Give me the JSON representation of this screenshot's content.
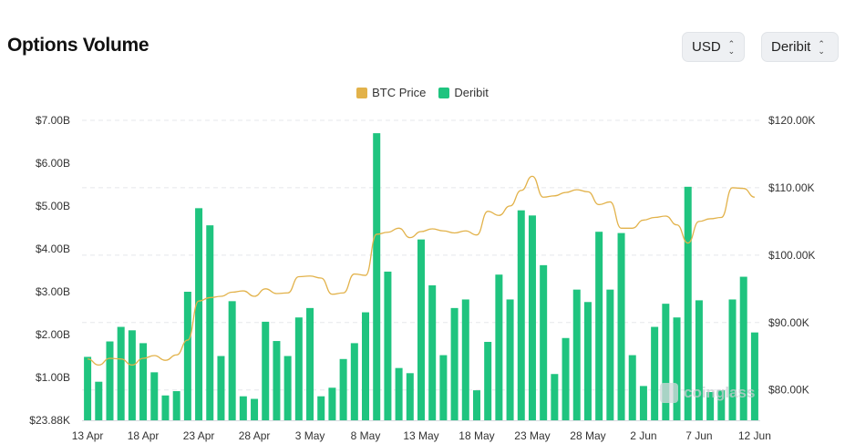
{
  "header": {
    "title": "Options Volume"
  },
  "controls": {
    "currency": {
      "value": "USD"
    },
    "exchange": {
      "value": "Deribit"
    }
  },
  "watermark": {
    "text": "coinglass"
  },
  "colors": {
    "bars": "#1fc47f",
    "price": "#e2b24a",
    "grid": "#e5e7eb"
  },
  "chart_data": {
    "type": "bar",
    "legend": [
      {
        "name": "BTC Price",
        "color": "#e2b24a"
      },
      {
        "name": "Deribit",
        "color": "#1fc47f"
      }
    ],
    "y_left_ticks": [
      "$23.88K",
      "$1.00B",
      "$2.00B",
      "$3.00B",
      "$4.00B",
      "$5.00B",
      "$6.00B",
      "$7.00B"
    ],
    "y_right_ticks": [
      "$80.00K",
      "$90.00K",
      "$100.00K",
      "$110.00K",
      "$120.00K"
    ],
    "x_ticks": [
      "13 Apr",
      "18 Apr",
      "23 Apr",
      "28 Apr",
      "3 May",
      "8 May",
      "13 May",
      "18 May",
      "23 May",
      "28 May",
      "2 Jun",
      "7 Jun",
      "12 Jun"
    ],
    "ylim_left": [
      0,
      7.0
    ],
    "ylim_right": [
      75.5,
      120
    ],
    "y_left_unit": "B USD",
    "y_right_unit": "K USD",
    "series": [
      {
        "name": "Deribit",
        "type": "bar",
        "values": [
          1.48,
          0.9,
          1.84,
          2.18,
          2.1,
          1.8,
          1.12,
          0.58,
          0.68,
          3.0,
          4.95,
          4.55,
          1.5,
          2.78,
          0.56,
          0.5,
          2.3,
          1.85,
          1.5,
          2.4,
          2.62,
          0.56,
          0.76,
          1.43,
          1.8,
          2.52,
          6.7,
          3.47,
          1.22,
          1.1,
          4.22,
          3.15,
          1.52,
          2.62,
          2.82,
          0.7,
          1.83,
          3.4,
          2.82,
          4.9,
          4.78,
          3.62,
          1.08,
          1.92,
          3.05,
          2.76,
          4.4,
          3.05,
          4.37,
          1.52,
          0.8,
          2.18,
          2.72,
          2.4,
          5.45,
          2.8,
          0.66,
          0.7,
          2.82,
          3.35,
          2.05
        ]
      },
      {
        "name": "BTC Price",
        "type": "line",
        "values": [
          84.6,
          83.7,
          84.7,
          84.6,
          83.7,
          84.7,
          85.1,
          84.4,
          85.2,
          87.4,
          93.2,
          93.7,
          93.9,
          94.5,
          94.7,
          93.9,
          95.0,
          94.3,
          94.4,
          96.8,
          96.9,
          96.6,
          94.2,
          94.4,
          97.2,
          97.0,
          103.1,
          103.4,
          104.0,
          102.6,
          103.5,
          103.9,
          103.6,
          103.3,
          103.6,
          103.0,
          106.5,
          105.9,
          107.3,
          109.6,
          111.7,
          108.6,
          108.8,
          109.3,
          109.7,
          109.4,
          107.5,
          107.9,
          104.0,
          104.0,
          105.2,
          105.6,
          105.8,
          104.5,
          101.8,
          105.0,
          105.4,
          105.6,
          110.0,
          109.9,
          108.6
        ]
      }
    ]
  }
}
